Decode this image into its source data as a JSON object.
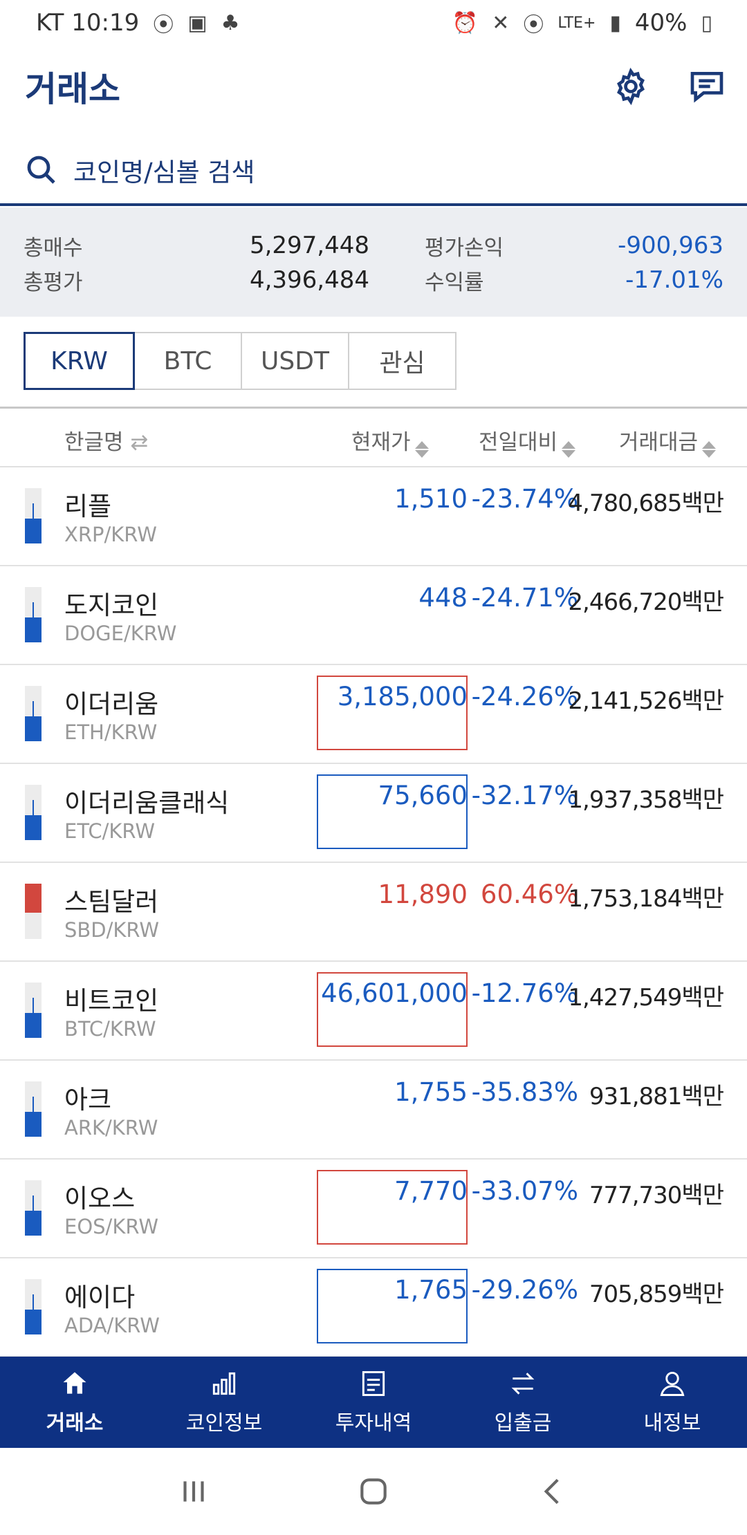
{
  "status_bar": {
    "carrier_time": "KT 10:19",
    "network": "LTE+",
    "battery": "40%"
  },
  "header": {
    "title": "거래소",
    "settings_icon": "gear-icon",
    "chat_icon": "chat-icon"
  },
  "search": {
    "placeholder": "코인명/심볼 검색"
  },
  "summary": {
    "total_buy_label": "총매수",
    "total_buy_value": "5,297,448",
    "total_eval_label": "총평가",
    "total_eval_value": "4,396,484",
    "pnl_label": "평가손익",
    "pnl_value": "-900,963",
    "yield_label": "수익률",
    "yield_value": "-17.01%"
  },
  "tabs": [
    {
      "label": "KRW",
      "active": true
    },
    {
      "label": "BTC",
      "active": false
    },
    {
      "label": "USDT",
      "active": false
    },
    {
      "label": "관심",
      "active": false
    }
  ],
  "columns": {
    "name": "한글명",
    "price": "현재가",
    "change": "전일대비",
    "volume": "거래대금"
  },
  "coins": [
    {
      "name": "리플",
      "symbol": "XRP/KRW",
      "price": "1,510",
      "change": "-23.74%",
      "volume": "4,780,685백만",
      "trend": "down",
      "box": "none"
    },
    {
      "name": "도지코인",
      "symbol": "DOGE/KRW",
      "price": "448",
      "change": "-24.71%",
      "volume": "2,466,720백만",
      "trend": "down",
      "box": "none"
    },
    {
      "name": "이더리움",
      "symbol": "ETH/KRW",
      "price": "3,185,000",
      "change": "-24.26%",
      "volume": "2,141,526백만",
      "trend": "down",
      "box": "red"
    },
    {
      "name": "이더리움클래식",
      "symbol": "ETC/KRW",
      "price": "75,660",
      "change": "-32.17%",
      "volume": "1,937,358백만",
      "trend": "down",
      "box": "blue"
    },
    {
      "name": "스팀달러",
      "symbol": "SBD/KRW",
      "price": "11,890",
      "change": "60.46%",
      "volume": "1,753,184백만",
      "trend": "up",
      "box": "none"
    },
    {
      "name": "비트코인",
      "symbol": "BTC/KRW",
      "price": "46,601,000",
      "change": "-12.76%",
      "volume": "1,427,549백만",
      "trend": "down",
      "box": "red"
    },
    {
      "name": "아크",
      "symbol": "ARK/KRW",
      "price": "1,755",
      "change": "-35.83%",
      "volume": "931,881백만",
      "trend": "down",
      "box": "none"
    },
    {
      "name": "이오스",
      "symbol": "EOS/KRW",
      "price": "7,770",
      "change": "-33.07%",
      "volume": "777,730백만",
      "trend": "down",
      "box": "red"
    },
    {
      "name": "에이다",
      "symbol": "ADA/KRW",
      "price": "1,765",
      "change": "-29.26%",
      "volume": "705,859백만",
      "trend": "down",
      "box": "blue"
    }
  ],
  "bottom_nav": [
    {
      "label": "거래소",
      "icon": "home-icon",
      "active": true
    },
    {
      "label": "코인정보",
      "icon": "bar-chart-icon",
      "active": false
    },
    {
      "label": "투자내역",
      "icon": "document-icon",
      "active": false
    },
    {
      "label": "입출금",
      "icon": "transfer-icon",
      "active": false
    },
    {
      "label": "내정보",
      "icon": "user-icon",
      "active": false
    }
  ],
  "colors": {
    "brand": "#1b3a78",
    "nav_bg": "#0e3183",
    "down": "#1a5bbf",
    "up": "#d2473e"
  }
}
